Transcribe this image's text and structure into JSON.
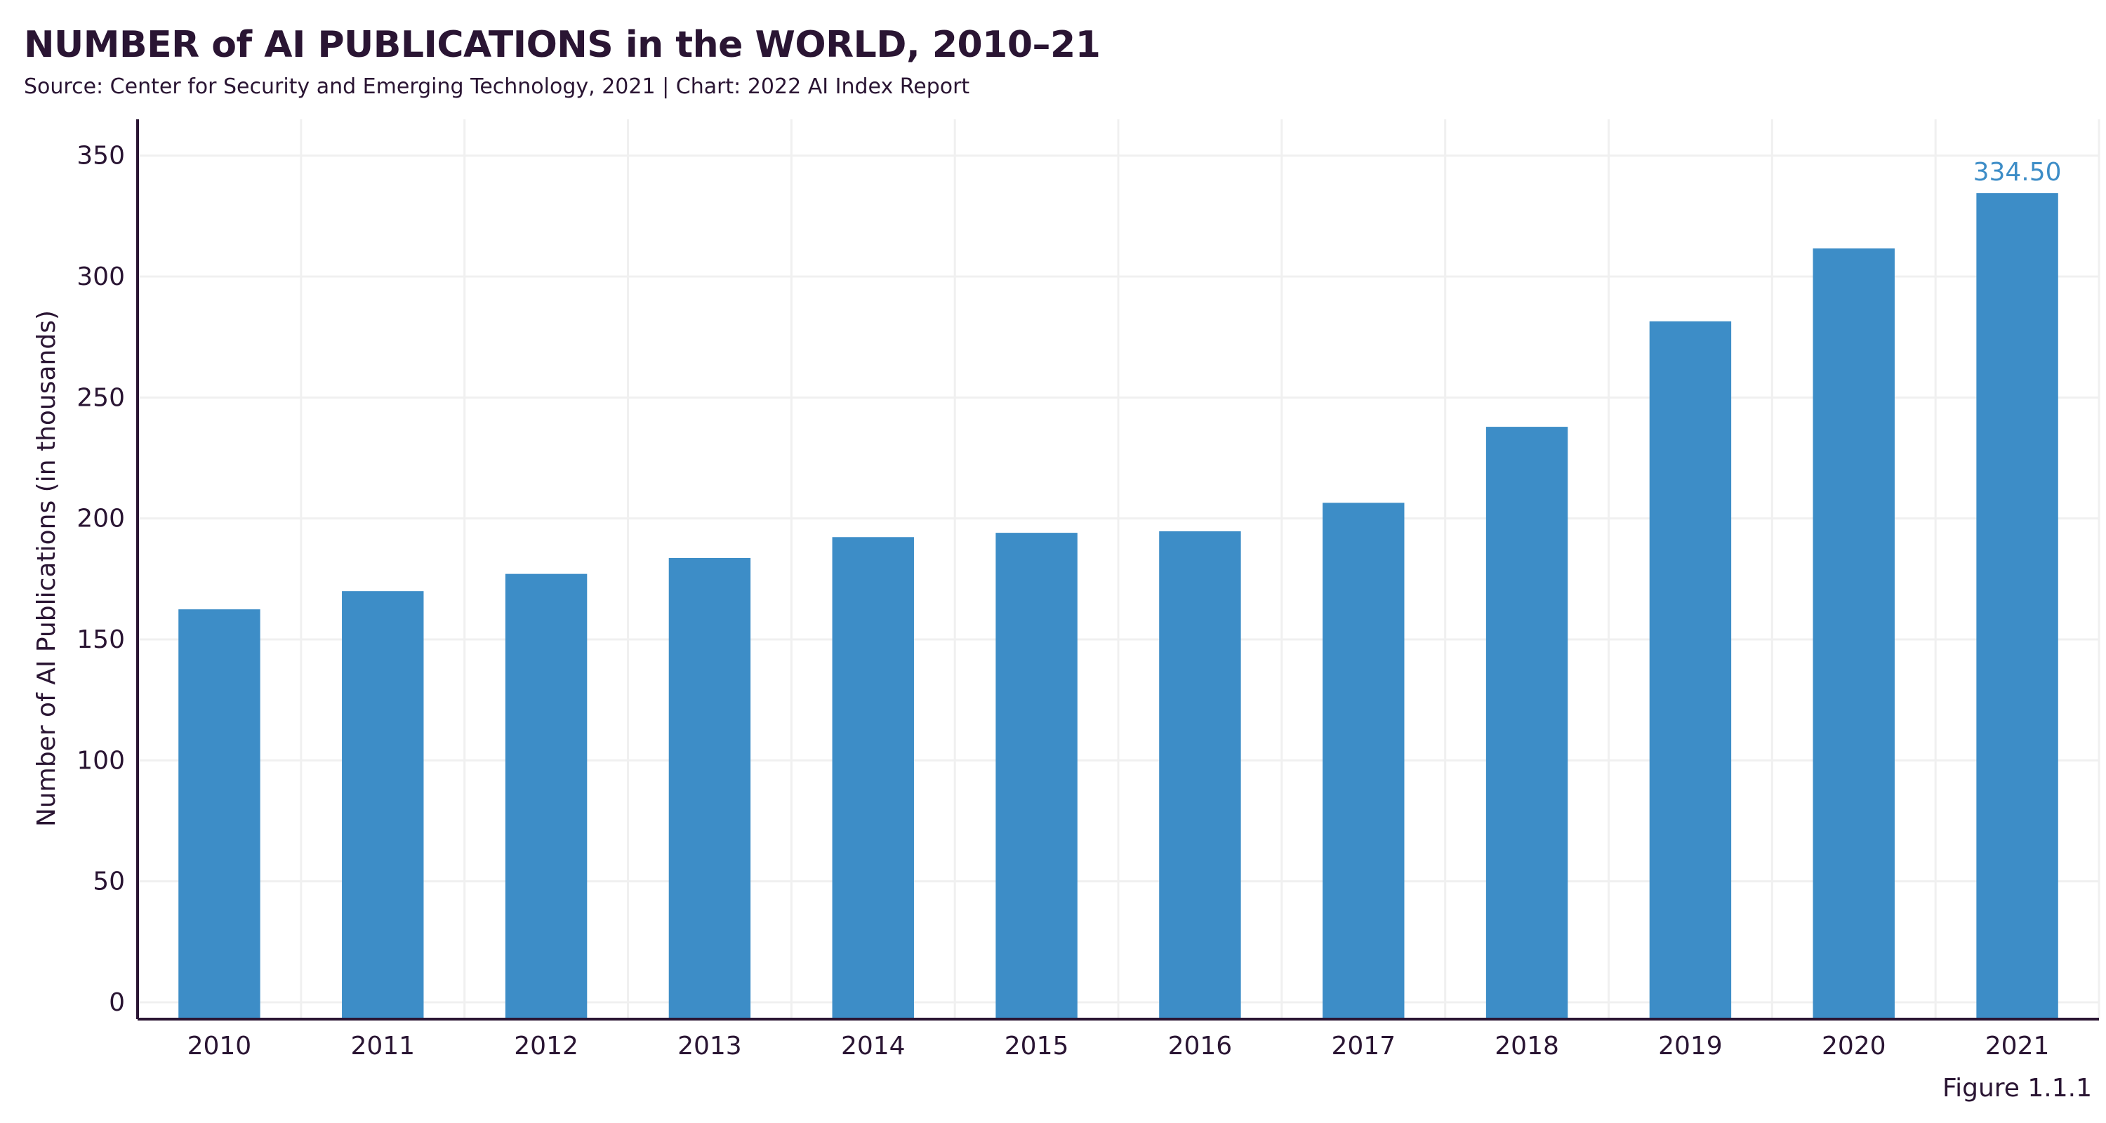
{
  "chart_data": {
    "type": "bar",
    "title": "NUMBER of AI PUBLICATIONS in the WORLD, 2010–21",
    "subtitle": "Source: Center for Security and Emerging Technology, 2021 | Chart: 2022 AI Index Report",
    "xlabel": "",
    "ylabel": "Number of AI Publications (in thousands)",
    "categories": [
      "2010",
      "2011",
      "2012",
      "2013",
      "2014",
      "2015",
      "2016",
      "2017",
      "2018",
      "2019",
      "2020",
      "2021"
    ],
    "values": [
      162.44,
      169.97,
      177.09,
      183.67,
      192.29,
      194.07,
      194.71,
      206.47,
      237.89,
      281.5,
      311.64,
      334.5
    ],
    "ylim": [
      0,
      350
    ],
    "yticks": [
      "0",
      "50",
      "100",
      "150",
      "200",
      "250",
      "300",
      "350"
    ],
    "data_labels": [
      {
        "category": "2021",
        "text": "334.50"
      }
    ],
    "grid": true,
    "legend": "none",
    "colors": {
      "bar": "#3d8dc7",
      "data_label": "#3d8dc7",
      "axis": "#2a1533",
      "grid": "#f0f0f0",
      "text": "#2a1533"
    }
  },
  "figure_label": "Figure 1.1.1"
}
